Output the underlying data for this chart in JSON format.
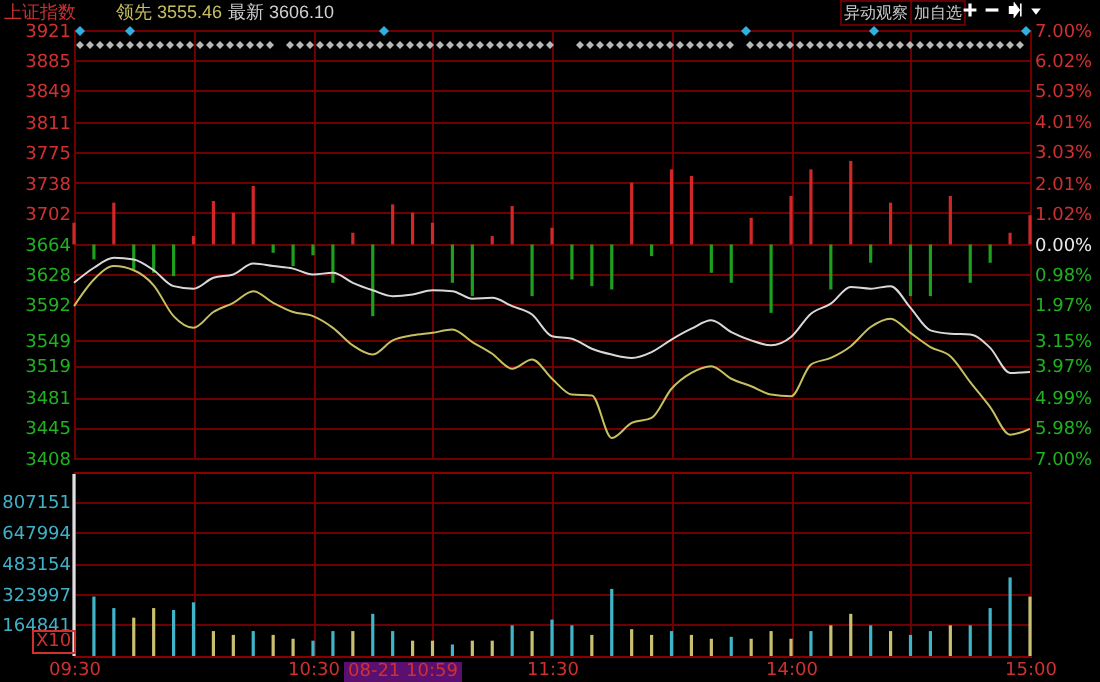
{
  "chart_data": [
    {
      "type": "line",
      "title": "上证指数",
      "annotations": [
        "领先 3555.46",
        "最新 3606.10",
        "异动观察",
        "加自选"
      ],
      "categories": [
        null,
        null,
        null,
        null,
        null,
        null,
        null,
        null,
        null,
        null,
        null,
        null,
        null,
        null,
        null,
        null,
        null,
        null,
        null,
        null,
        null,
        null,
        null,
        null,
        null,
        null,
        null,
        null,
        null,
        null,
        null,
        null,
        null,
        null,
        null,
        null,
        null,
        null,
        null,
        null,
        null,
        null,
        null,
        null,
        null,
        null,
        null,
        null,
        null
      ],
      "ylim": [
        3408,
        3921
      ],
      "yticks": [
        3921,
        3885,
        3849,
        3811,
        3775,
        3738,
        3702,
        3664,
        3628,
        3592,
        3549,
        3519,
        3481,
        3445,
        3408
      ],
      "y2lim": [
        -7,
        7
      ],
      "y2ticks": [
        {
          "value": 7,
          "label": "7.00%"
        },
        {
          "value": 6.02,
          "label": "6.02%"
        },
        {
          "value": 5.03,
          "label": "5.03%"
        },
        {
          "value": 4.01,
          "label": "4.01%"
        },
        {
          "value": 3.03,
          "label": "3.03%"
        },
        {
          "value": 2.01,
          "label": "2.01%"
        },
        {
          "value": 1.02,
          "label": "1.02%"
        },
        {
          "value": 0,
          "label": "0.00%"
        },
        {
          "value": -0.98,
          "label": "0.98%"
        },
        {
          "value": -1.97,
          "label": "1.97%"
        },
        {
          "value": -3.15,
          "label": "3.15%"
        },
        {
          "value": -3.97,
          "label": "3.97%"
        },
        {
          "value": -4.99,
          "label": "4.99%"
        },
        {
          "value": -5.98,
          "label": "5.98%"
        },
        {
          "value": -7,
          "label": "7.00%"
        }
      ],
      "grid": true,
      "tick_labels": "y",
      "series": [
        {
          "type": "bar",
          "base": [
            3664,
            3664,
            3664,
            3664,
            3664,
            3664,
            3664,
            3664,
            3664,
            3664,
            3664,
            3664,
            3664,
            3664,
            3664,
            3664,
            3664,
            3664,
            3664,
            3664,
            3664,
            3664,
            3664,
            3664,
            3664,
            3664,
            3664,
            3664,
            3664,
            3664,
            3664,
            3664,
            3664,
            3664,
            3664,
            3664,
            3664,
            3664,
            3664,
            3664,
            3664,
            3664,
            3664,
            3664,
            3664,
            3664,
            3664,
            3664,
            3664
          ],
          "values": [
            26,
            -18,
            50,
            -30,
            -34,
            -38,
            10,
            52,
            38,
            70,
            -10,
            -26,
            -13,
            -46,
            14,
            -86,
            48,
            38,
            26,
            -46,
            -62,
            10,
            46,
            -62,
            20,
            -42,
            -50,
            -54,
            74,
            -14,
            90,
            82,
            -34,
            -46,
            32,
            -82,
            58,
            90,
            -54,
            100,
            -22,
            50,
            -62,
            -62,
            58,
            -46,
            -22,
            14,
            35
          ],
          "colors": [
            "#d02828",
            "#1ea01e",
            "#d02828",
            "#1ea01e",
            "#1ea01e",
            "#1ea01e",
            "#d02828",
            "#d02828",
            "#d02828",
            "#d02828",
            "#1ea01e",
            "#1ea01e",
            "#1ea01e",
            "#1ea01e",
            "#d02828",
            "#1ea01e",
            "#d02828",
            "#d02828",
            "#d02828",
            "#1ea01e",
            "#1ea01e",
            "#d02828",
            "#d02828",
            "#1ea01e",
            "#d02828",
            "#1ea01e",
            "#1ea01e",
            "#1ea01e",
            "#d02828",
            "#1ea01e",
            "#d02828",
            "#d02828",
            "#1ea01e",
            "#1ea01e",
            "#d02828",
            "#1ea01e",
            "#d02828",
            "#d02828",
            "#1ea01e",
            "#d02828",
            "#1ea01e",
            "#d02828",
            "#1ea01e",
            "#1ea01e",
            "#d02828",
            "#1ea01e",
            "#1ea01e",
            "#d02828",
            "#d02828"
          ]
        },
        {
          "type": "line",
          "color": "#d8d8d8",
          "values": [
            3618,
            3636,
            3648,
            3646,
            3633,
            3614,
            3611,
            3624,
            3628,
            3641,
            3638,
            3635,
            3628,
            3630,
            3618,
            3609,
            3602,
            3604,
            3609,
            3608,
            3599,
            3600,
            3590,
            3580,
            3554,
            3551,
            3539,
            3532,
            3528,
            3535,
            3550,
            3563,
            3573,
            3559,
            3549,
            3543,
            3553,
            3581,
            3593,
            3613,
            3611,
            3614,
            3588,
            3561,
            3557,
            3556,
            3540,
            3510,
            3511
          ]
        },
        {
          "type": "line",
          "color": "#c8c060",
          "values": [
            3590,
            3622,
            3638,
            3633,
            3615,
            3578,
            3564,
            3583,
            3594,
            3608,
            3594,
            3583,
            3578,
            3564,
            3543,
            3532,
            3549,
            3555,
            3558,
            3562,
            3547,
            3533,
            3515,
            3526,
            3503,
            3484,
            3483,
            3432,
            3450,
            3456,
            3491,
            3510,
            3518,
            3503,
            3494,
            3484,
            3482,
            3520,
            3528,
            3542,
            3565,
            3575,
            3558,
            3541,
            3530,
            3499,
            3469,
            3436,
            3443
          ]
        }
      ]
    },
    {
      "type": "bar",
      "annotations": [
        "X10",
        "08-21 10:59"
      ],
      "categories": [
        "09:30",
        null,
        null,
        null,
        null,
        null,
        null,
        null,
        null,
        null,
        null,
        null,
        "10:30",
        null,
        null,
        null,
        null,
        null,
        null,
        null,
        null,
        null,
        null,
        null,
        "11:30",
        null,
        null,
        null,
        null,
        null,
        null,
        null,
        null,
        null,
        null,
        null,
        "14:00",
        null,
        null,
        null,
        null,
        null,
        null,
        null,
        null,
        null,
        null,
        null,
        "15:00"
      ],
      "ylim": [
        0,
        960000
      ],
      "yticks": [
        164841,
        323997,
        483154,
        647994,
        807151
      ],
      "grid": true,
      "values": [
        950000,
        310000,
        250000,
        200000,
        250000,
        240000,
        280000,
        130000,
        110000,
        130000,
        110000,
        90000,
        80000,
        130000,
        130000,
        220000,
        130000,
        80000,
        80000,
        60000,
        80000,
        80000,
        160000,
        130000,
        190000,
        160000,
        110000,
        350000,
        140000,
        110000,
        130000,
        110000,
        90000,
        100000,
        90000,
        130000,
        90000,
        130000,
        160000,
        220000,
        160000,
        130000,
        110000,
        130000,
        160000,
        160000,
        250000,
        410000,
        310000
      ],
      "colors": [
        "#e0e0e0",
        "#40b4c8",
        "#40b4c8",
        "#c8c070",
        "#c8c070",
        "#40b4c8",
        "#40b4c8",
        "#c8c070",
        "#c8c070",
        "#40b4c8",
        "#c8c070",
        "#c8c070",
        "#40b4c8",
        "#40b4c8",
        "#c8c070",
        "#40b4c8",
        "#40b4c8",
        "#c8c070",
        "#c8c070",
        "#40b4c8",
        "#c8c070",
        "#c8c070",
        "#40b4c8",
        "#c8c070",
        "#40b4c8",
        "#40b4c8",
        "#c8c070",
        "#40b4c8",
        "#c8c070",
        "#c8c070",
        "#40b4c8",
        "#c8c070",
        "#c8c070",
        "#40b4c8",
        "#c8c070",
        "#c8c070",
        "#c8c070",
        "#40b4c8",
        "#c8c070",
        "#c8c070",
        "#40b4c8",
        "#c8c070",
        "#40b4c8",
        "#40b4c8",
        "#c8c070",
        "#40b4c8",
        "#40b4c8",
        "#40b4c8",
        "#c8c070"
      ]
    }
  ]
}
